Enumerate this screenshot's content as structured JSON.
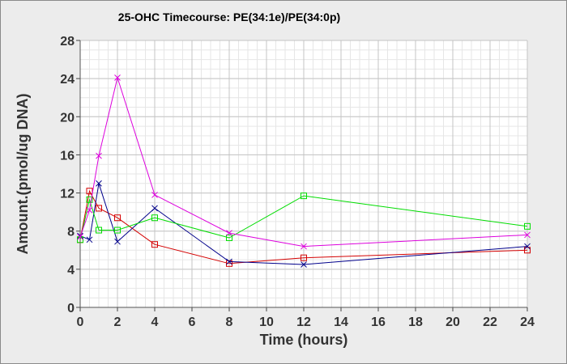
{
  "chart_data": {
    "type": "line",
    "title": "25-OHC Timecourse: PE(34:1e)/PE(34:0p)",
    "xlabel": "Time (hours)",
    "ylabel": "Amount.(pmol/ug DNA)",
    "xlim": [
      0,
      24
    ],
    "ylim": [
      0,
      28
    ],
    "xticks": [
      0,
      2,
      4,
      6,
      8,
      10,
      12,
      14,
      16,
      18,
      20,
      22,
      24
    ],
    "yticks": [
      0,
      4,
      8,
      12,
      16,
      20,
      24,
      28
    ],
    "grid": true,
    "series": [
      {
        "color": "#d40000",
        "marker": "square",
        "x": [
          0,
          0.5,
          1,
          2,
          4,
          8,
          12,
          24
        ],
        "y": [
          7.1,
          12.2,
          10.4,
          9.4,
          6.6,
          4.6,
          5.2,
          6.0
        ]
      },
      {
        "color": "#00008b",
        "marker": "x",
        "x": [
          0,
          0.5,
          1,
          2,
          4,
          8,
          12,
          24
        ],
        "y": [
          7.5,
          7.1,
          13.0,
          6.9,
          10.4,
          4.8,
          4.5,
          6.4
        ]
      },
      {
        "color": "#00dd00",
        "marker": "square",
        "x": [
          0,
          0.5,
          1,
          2,
          4,
          8,
          12,
          24
        ],
        "y": [
          7.1,
          11.3,
          8.1,
          8.1,
          9.4,
          7.3,
          11.7,
          8.5
        ]
      },
      {
        "color": "#dd00dd",
        "marker": "x",
        "x": [
          0,
          0.5,
          1,
          2,
          4,
          8,
          12,
          24
        ],
        "y": [
          7.4,
          10.2,
          15.9,
          24.1,
          11.8,
          7.8,
          6.4,
          7.6
        ]
      }
    ]
  }
}
